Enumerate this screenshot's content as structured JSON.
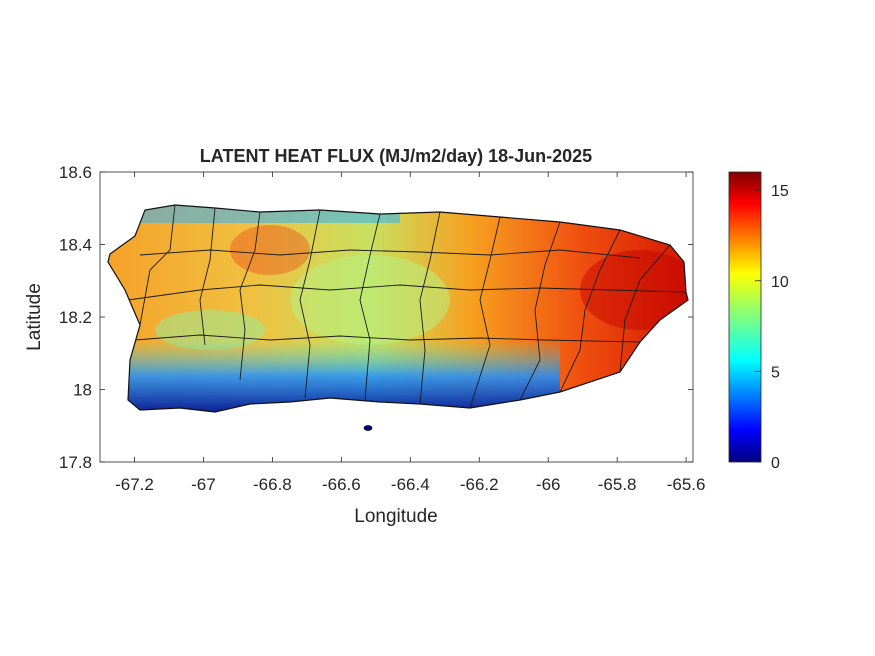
{
  "chart_data": {
    "type": "heatmap",
    "title": "LATENT HEAT FLUX (MJ/m2/day) 18-Jun-2025",
    "xlabel": "Longitude",
    "ylabel": "Latitude",
    "xlim": [
      -67.3,
      -65.58
    ],
    "ylim": [
      17.8,
      18.6
    ],
    "x_ticks": [
      -67.2,
      -67,
      -66.8,
      -66.6,
      -66.4,
      -66.2,
      -66,
      -65.8,
      -65.6
    ],
    "x_tick_labels": [
      "-67.2",
      "-67",
      "-66.8",
      "-66.6",
      "-66.4",
      "-66.2",
      "-66",
      "-65.8",
      "-65.6"
    ],
    "y_ticks": [
      17.8,
      18,
      18.2,
      18.4,
      18.6
    ],
    "y_tick_labels": [
      "17.8",
      "18",
      "18.2",
      "18.4",
      "18.6"
    ],
    "colorbar": {
      "colormap": "jet",
      "clim": [
        0,
        16
      ],
      "ticks": [
        0,
        5,
        10,
        15
      ],
      "tick_labels": [
        "0",
        "5",
        "10",
        "15"
      ]
    },
    "grid": false,
    "legend": "colorbar-right"
  }
}
